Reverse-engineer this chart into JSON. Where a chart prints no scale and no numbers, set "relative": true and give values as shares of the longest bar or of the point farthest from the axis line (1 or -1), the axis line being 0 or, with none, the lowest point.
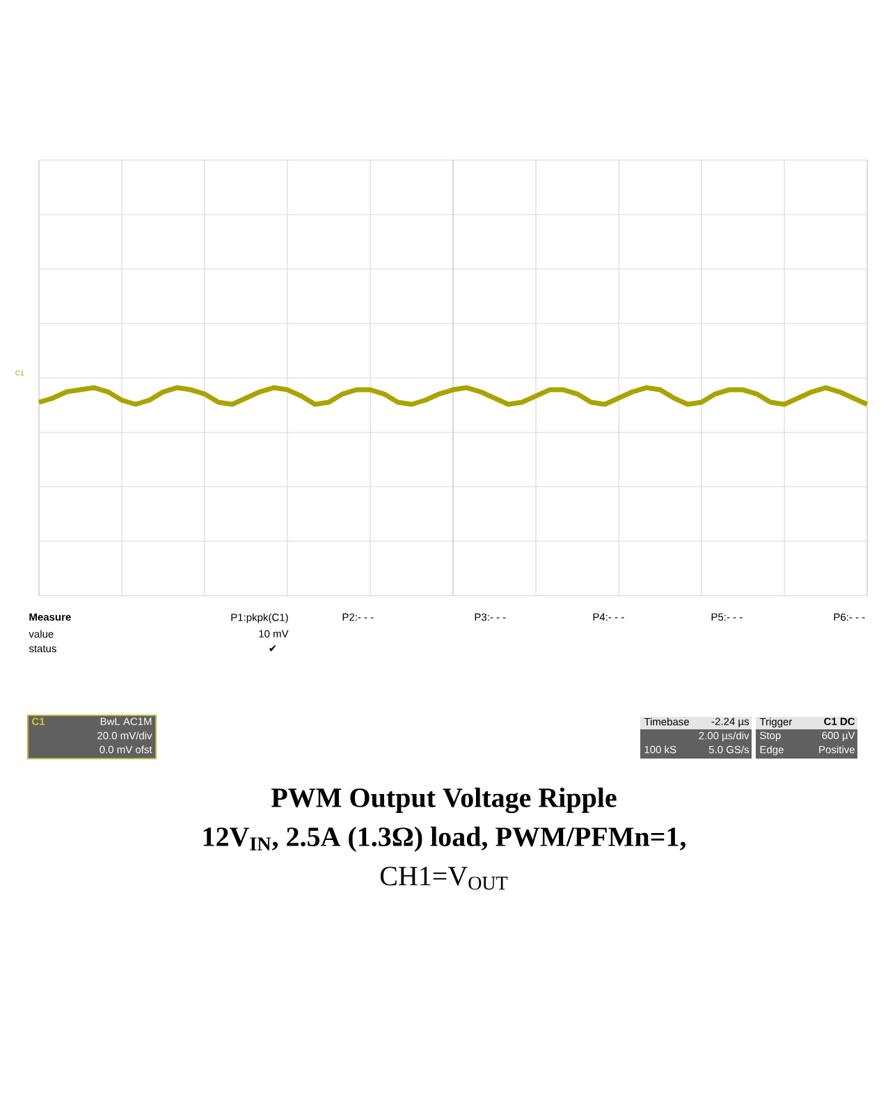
{
  "chart_data": {
    "type": "line",
    "title": "PWM Output Voltage Ripple",
    "subtitle": "12V$_{IN}$, 2.5A (1.3Ω) load, PWM/PFMn=1,",
    "relative": true,
    "grid": true,
    "marker": "none",
    "line_style": "solid",
    "categories": [
      null,
      null,
      null,
      null,
      null,
      null,
      null,
      null,
      null,
      null,
      null,
      null,
      null,
      null,
      null,
      null,
      null,
      null,
      null,
      null,
      null,
      null,
      null,
      null,
      null,
      null,
      null,
      null,
      null,
      null,
      null,
      null,
      null,
      null,
      null,
      null,
      null,
      null,
      null,
      null,
      null,
      null,
      null,
      null,
      null,
      null,
      null,
      null,
      null,
      null,
      null,
      null,
      null,
      null,
      null,
      null,
      null,
      null,
      null,
      null,
      null
    ],
    "series": [
      {
        "color": "#aaa400",
        "values": [
          0.93,
          0.95,
          0.98,
          0.99,
          1,
          0.98,
          0.94,
          0.92,
          0.94,
          0.98,
          1,
          0.99,
          0.97,
          0.93,
          0.92,
          0.95,
          0.98,
          1,
          0.99,
          0.96,
          0.92,
          0.93,
          0.97,
          0.99,
          0.99,
          0.97,
          0.93,
          0.92,
          0.94,
          0.97,
          0.99,
          1,
          0.98,
          0.95,
          0.92,
          0.93,
          0.96,
          0.99,
          0.99,
          0.97,
          0.93,
          0.92,
          0.95,
          0.98,
          1,
          0.99,
          0.95,
          0.92,
          0.93,
          0.97,
          0.99,
          0.99,
          0.97,
          0.93,
          0.92,
          0.95,
          0.98,
          1,
          0.98,
          0.95,
          0.92
        ]
      }
    ],
    "annotations": [
      "CH1=V$_{OUT}$",
      "C1",
      "Measure",
      "value",
      "status",
      "P1:pkpk(C1)",
      "10 mV",
      "✔",
      "P2:- - -",
      "P3:- - -",
      "P4:- - -",
      "P5:- - -",
      "P6:- - -",
      "C1",
      "BwL AC1M",
      "20.0 mV/div",
      "0.0 mV ofst",
      "Timebase",
      "-2.24 µs",
      "2.00 µs/div",
      "100 kS",
      "5.0 GS/s",
      "Trigger",
      "C1 DC",
      "Stop",
      "600 µV",
      "Edge",
      "Positive"
    ]
  }
}
